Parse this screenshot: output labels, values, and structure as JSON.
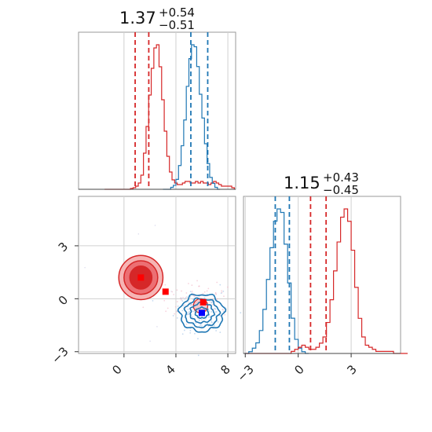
{
  "colors": {
    "red": "#d62728",
    "blue": "#1f77b4",
    "grid": "#d0d0d0"
  },
  "chart_data": [
    {
      "type": "histogram",
      "panel": "top-left",
      "title": {
        "median": "1.37",
        "plus": "+0.54",
        "minus": "−0.51"
      },
      "xlim": [
        -3.5,
        8.6
      ],
      "grid_x": [
        0,
        4,
        8
      ],
      "series": [
        {
          "color": "red",
          "bin_start": -1.5,
          "bin_width": 0.2,
          "density": [
            0,
            0,
            0,
            0,
            0,
            0,
            0,
            0,
            0,
            0,
            0.005,
            0.01,
            0.02,
            0.04,
            0.09,
            0.23,
            0.4,
            0.6,
            0.77,
            0.9,
            0.92,
            0.78,
            0.57,
            0.37,
            0.21,
            0.11,
            0.06,
            0.04,
            0.03,
            0.03,
            0.04,
            0.05,
            0.05,
            0.04,
            0.04,
            0.05,
            0.04,
            0.05,
            0.04,
            0.04,
            0.03,
            0.04,
            0.05,
            0.04,
            0.03,
            0.02,
            0.02,
            0.02,
            0.02,
            0.01
          ],
          "quantiles": [
            0.86,
            1.91
          ]
        },
        {
          "color": "blue",
          "bin_start": 3.0,
          "bin_width": 0.2,
          "density": [
            0,
            0,
            0,
            0.01,
            0.02,
            0.05,
            0.12,
            0.22,
            0.35,
            0.52,
            0.66,
            0.73,
            0.72,
            0.62,
            0.48,
            0.36,
            0.23,
            0.13,
            0.06,
            0.03,
            0.01,
            0
          ],
          "quantiles": [
            5.15,
            6.45
          ]
        }
      ]
    },
    {
      "type": "scatter-contour",
      "panel": "bottom-left",
      "xlim": [
        -3.5,
        8.6
      ],
      "ylim": [
        -3.1,
        5.8
      ],
      "x_ticks": [
        0,
        4,
        8
      ],
      "y_ticks": [
        -3,
        0,
        3
      ],
      "x_tick_labels": [
        "0",
        "4",
        "8"
      ],
      "y_tick_labels": [
        "−3",
        "0",
        "3"
      ],
      "red_markers": [
        [
          1.3,
          1.2
        ],
        [
          3.2,
          0.4
        ],
        [
          6.1,
          -0.2
        ]
      ],
      "blue_markers": [
        [
          6.0,
          -0.8
        ]
      ],
      "red_contours": [
        {
          "cx": 1.3,
          "cy": 1.2,
          "rx": 1.7,
          "ry": 1.25,
          "level": "outer"
        },
        {
          "cx": 1.3,
          "cy": 1.2,
          "rx": 1.3,
          "ry": 0.95,
          "level": "mid"
        },
        {
          "cx": 1.3,
          "cy": 1.2,
          "rx": 0.85,
          "ry": 0.65,
          "level": "inner"
        }
      ],
      "blue_contours": [
        {
          "cx": 6.0,
          "cy": -0.8,
          "rx": 1.7,
          "ry": 1.05
        },
        {
          "cx": 6.0,
          "cy": -0.8,
          "rx": 1.3,
          "ry": 0.8
        },
        {
          "cx": 6.0,
          "cy": -0.8,
          "rx": 0.9,
          "ry": 0.55
        },
        {
          "cx": 6.0,
          "cy": -0.8,
          "rx": 0.5,
          "ry": 0.3
        }
      ]
    },
    {
      "type": "histogram",
      "panel": "bottom-right",
      "title": {
        "median": "1.15",
        "plus": "+0.43",
        "minus": "−0.45"
      },
      "xlim": [
        -3.1,
        5.8
      ],
      "grid_x": [
        -3,
        0,
        3
      ],
      "x_tick_labels": [
        "−3",
        "0",
        "3"
      ],
      "series": [
        {
          "color": "blue",
          "bin_start": -3.0,
          "bin_width": 0.2,
          "density": [
            0,
            0.01,
            0.03,
            0.06,
            0.13,
            0.25,
            0.42,
            0.6,
            0.75,
            0.82,
            0.8,
            0.62,
            0.4,
            0.2,
            0.08,
            0.03,
            0.01,
            0
          ],
          "quantiles": [
            -1.3,
            -0.5
          ]
        },
        {
          "color": "red",
          "bin_start": -3.0,
          "bin_width": 0.2,
          "density": [
            0,
            0,
            0,
            0,
            0,
            0,
            0,
            0,
            0,
            0,
            0,
            0,
            0,
            0.01,
            0.02,
            0.03,
            0.04,
            0.03,
            0.02,
            0.02,
            0.03,
            0.05,
            0.08,
            0.15,
            0.26,
            0.4,
            0.54,
            0.66,
            0.7,
            0.64,
            0.5,
            0.32,
            0.17,
            0.08,
            0.04,
            0.03,
            0.02,
            0.01,
            0.01,
            0.01,
            0.01,
            0.01,
            0,
            0,
            0,
            0
          ],
          "quantiles": [
            0.7,
            1.58
          ]
        }
      ]
    }
  ]
}
